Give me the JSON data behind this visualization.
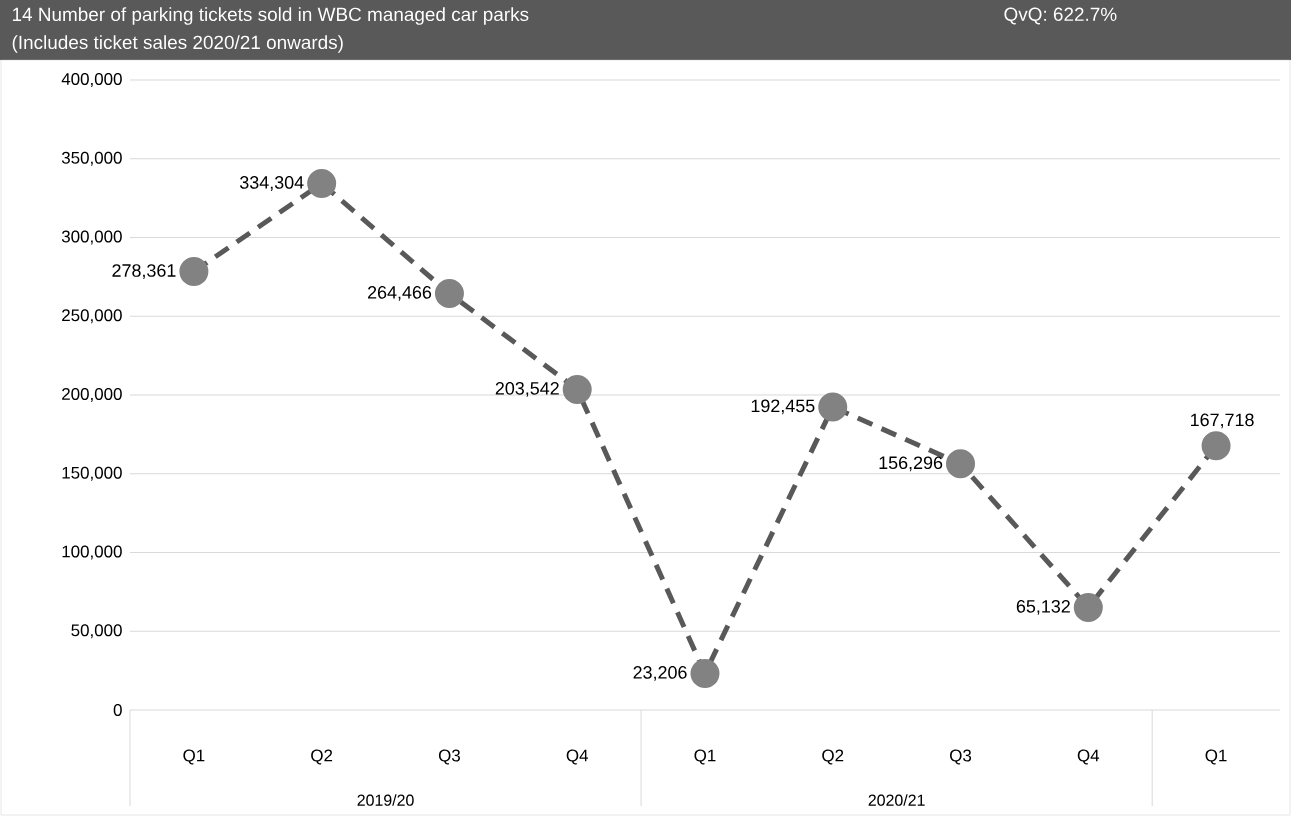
{
  "chart_data": {
    "type": "line",
    "title": "14 Number of parking tickets sold in WBC managed car parks",
    "subtitle": "(Includes ticket sales 2020/21 onwards)",
    "annotations": [
      "QvQ: 622.7%",
      "2019/20",
      "2020/21"
    ],
    "categories": [
      "Q1",
      "Q2",
      "Q3",
      "Q4",
      "Q1",
      "Q2",
      "Q3",
      "Q4",
      "Q1"
    ],
    "series": [
      {
        "color": "#595959",
        "values": [
          278361,
          334304,
          264466,
          203542,
          23206,
          192455,
          156296,
          65132,
          167718
        ],
        "value_labels": [
          "278,361",
          "334,304",
          "264,466",
          "203,542",
          "23,206",
          "192,455",
          "156,296",
          "65,132",
          "167,718"
        ]
      }
    ],
    "ylim": [
      0,
      400000
    ],
    "yticks": [
      {
        "value": 0,
        "label": "0"
      },
      {
        "value": 50000,
        "label": "50,000"
      },
      {
        "value": 100000,
        "label": "100,000"
      },
      {
        "value": 150000,
        "label": "150,000"
      },
      {
        "value": 200000,
        "label": "200,000"
      },
      {
        "value": 250000,
        "label": "250,000"
      },
      {
        "value": 300000,
        "label": "300,000"
      },
      {
        "value": 350000,
        "label": "350,000"
      },
      {
        "value": 400000,
        "label": "400,000"
      }
    ],
    "grid": "y",
    "marker": "circle",
    "line_style": "dashed"
  }
}
